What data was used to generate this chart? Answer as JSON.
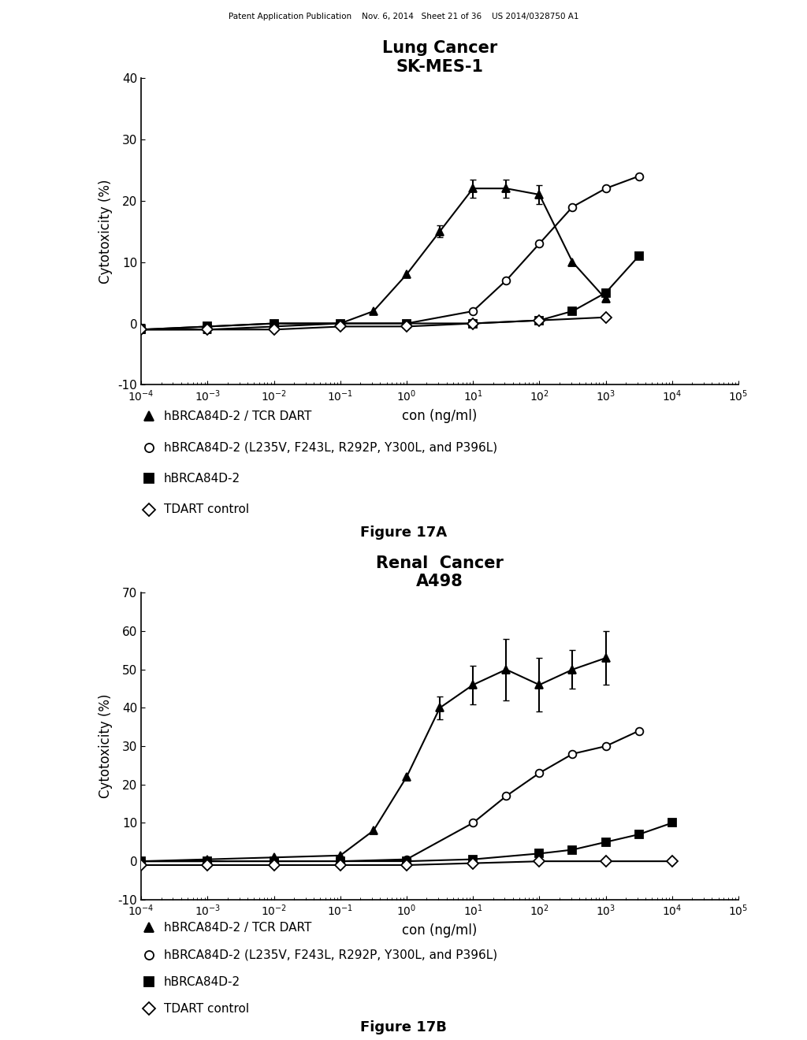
{
  "fig_width": 10.24,
  "fig_height": 13.2,
  "background_color": "#ffffff",
  "header_text": "Patent Application Publication    Nov. 6, 2014   Sheet 21 of 36    US 2014/0328750 A1",
  "plot_A": {
    "title_line1": "Lung Cancer",
    "title_line2": "SK-MES-1",
    "xlabel": "con (ng/ml)",
    "ylabel": "Cytotoxicity (%)",
    "ylim": [
      -10,
      40
    ],
    "yticks": [
      -10,
      0,
      10,
      20,
      30,
      40
    ],
    "series": {
      "triangle_filled": {
        "x_log": [
          -4,
          -3,
          -2,
          -1,
          -0.5,
          0,
          0.5,
          1,
          1.5,
          2,
          2.5,
          3
        ],
        "y": [
          -1,
          -1,
          -0.5,
          0,
          2,
          8,
          15,
          22,
          22,
          21,
          10,
          4
        ],
        "yerr": [
          0,
          0,
          0,
          0,
          0,
          0,
          1,
          1.5,
          1.5,
          1.5,
          0,
          0
        ],
        "marker": "^",
        "filled": true,
        "label": "hBRCA84D-2 / TCR DART"
      },
      "circle_open": {
        "x_log": [
          -4,
          -3,
          -2,
          -1,
          0,
          1,
          1.5,
          2,
          2.5,
          3,
          3.5
        ],
        "y": [
          -1,
          -0.5,
          0,
          0,
          0,
          2,
          7,
          13,
          19,
          22,
          24
        ],
        "yerr": [
          0,
          0,
          0,
          0,
          0,
          0,
          0,
          0,
          0,
          0,
          0
        ],
        "marker": "o",
        "filled": false,
        "label": "hBRCA84D-2 (L235V, F243L, R292P, Y300L, and P396L)"
      },
      "square_filled": {
        "x_log": [
          -4,
          -3,
          -2,
          -1,
          0,
          1,
          2,
          2.5,
          3,
          3.5
        ],
        "y": [
          -1,
          -0.5,
          0,
          0,
          0,
          0,
          0.5,
          2,
          5,
          11
        ],
        "yerr": [
          0,
          0,
          0,
          0,
          0,
          0,
          0,
          0,
          0,
          0
        ],
        "marker": "s",
        "filled": true,
        "label": "hBRCA84D-2"
      },
      "diamond_open": {
        "x_log": [
          -4,
          -3,
          -2,
          -1,
          0,
          1,
          2,
          3
        ],
        "y": [
          -1,
          -1,
          -1,
          -0.5,
          -0.5,
          0,
          0.5,
          1
        ],
        "yerr": [
          0,
          0,
          0,
          0,
          0,
          0,
          0,
          0
        ],
        "marker": "D",
        "filled": false,
        "label": "TDART control"
      }
    },
    "figure_label": "Figure 17A"
  },
  "plot_B": {
    "title_line1": "Renal  Cancer",
    "title_line2": "A498",
    "xlabel": "con (ng/ml)",
    "ylabel": "Cytotoxicity (%)",
    "ylim": [
      -10,
      70
    ],
    "yticks": [
      -10,
      0,
      10,
      20,
      30,
      40,
      50,
      60,
      70
    ],
    "series": {
      "triangle_filled": {
        "x_log": [
          -4,
          -3,
          -2,
          -1,
          -0.5,
          0,
          0.5,
          1,
          1.5,
          2,
          2.5,
          3
        ],
        "y": [
          0,
          0.5,
          1,
          1.5,
          8,
          22,
          40,
          46,
          50,
          46,
          50,
          53
        ],
        "yerr": [
          0,
          0,
          0,
          0,
          0,
          0,
          3,
          5,
          8,
          7,
          5,
          7
        ],
        "marker": "^",
        "filled": true,
        "label": "hBRCA84D-2 / TCR DART"
      },
      "circle_open": {
        "x_log": [
          -4,
          -3,
          -2,
          -1,
          0,
          1,
          1.5,
          2,
          2.5,
          3,
          3.5
        ],
        "y": [
          0,
          0,
          0,
          0,
          0.5,
          10,
          17,
          23,
          28,
          30,
          34
        ],
        "yerr": [
          0,
          0,
          0,
          0,
          0,
          0,
          0,
          0,
          0,
          0,
          0
        ],
        "marker": "o",
        "filled": false,
        "label": "hBRCA84D-2 (L235V, F243L, R292P, Y300L, and P396L)"
      },
      "square_filled": {
        "x_log": [
          -4,
          -3,
          -2,
          -1,
          0,
          1,
          2,
          2.5,
          3,
          3.5,
          4
        ],
        "y": [
          0,
          0,
          0,
          0,
          0,
          0.5,
          2,
          3,
          5,
          7,
          10
        ],
        "yerr": [
          0,
          0,
          0,
          0,
          0,
          0,
          0,
          0,
          0,
          0,
          0
        ],
        "marker": "s",
        "filled": true,
        "label": "hBRCA84D-2"
      },
      "diamond_open": {
        "x_log": [
          -4,
          -3,
          -2,
          -1,
          0,
          1,
          2,
          3,
          4
        ],
        "y": [
          -1,
          -1,
          -1,
          -1,
          -1,
          -0.5,
          0,
          0,
          0
        ],
        "yerr": [
          0,
          0,
          0,
          0,
          0,
          0,
          0,
          0,
          0
        ],
        "marker": "D",
        "filled": false,
        "label": "TDART control"
      }
    },
    "figure_label": "Figure 17B"
  },
  "legend_markers": [
    "^",
    "o",
    "s",
    "D"
  ],
  "legend_filled": [
    true,
    false,
    true,
    false
  ],
  "legend_labels": [
    "hBRCA84D-2 / TCR DART",
    "hBRCA84D-2 (L235V, F243L, R292P, Y300L, and P396L)",
    "hBRCA84D-2",
    "TDART control"
  ]
}
